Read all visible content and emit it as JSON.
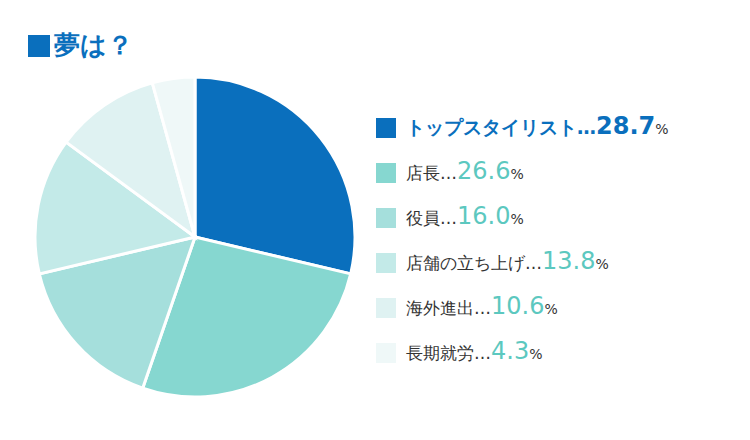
{
  "chart_data": {
    "type": "pie",
    "title": "夢は？",
    "categories": [
      "トップスタイリスト",
      "店長",
      "役員",
      "店舗の立ち上げ",
      "海外進出",
      "長期就労"
    ],
    "values": [
      28.7,
      26.6,
      16.0,
      13.8,
      10.6,
      4.3
    ],
    "value_labels": [
      "…28.7%",
      "…26.6%",
      "…16.0%",
      "…13.8%",
      "…10.6%",
      "…4.3%"
    ],
    "colors": [
      "#0a6fbd",
      "#86d7d0",
      "#a5dfdc",
      "#c3eae8",
      "#dff2f2",
      "#eff8f8"
    ],
    "legend": "right"
  }
}
